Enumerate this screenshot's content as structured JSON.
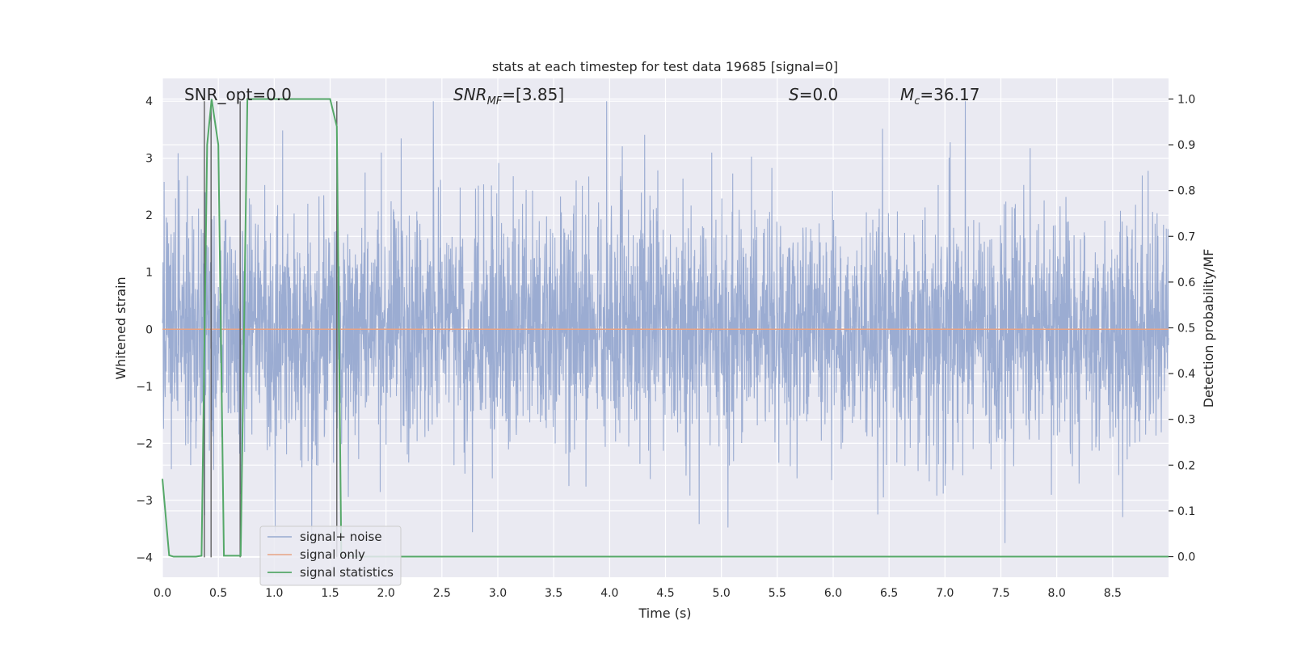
{
  "chart_data": {
    "type": "line",
    "title": "stats at each timestep for test data 19685 [signal=0]",
    "xlabel": "Time (s)",
    "ylabel": "Whitened strain",
    "ylabel_right": "Detection probability/MF",
    "xlim": [
      0.0,
      9.0
    ],
    "ylim": [
      -4.35,
      4.4
    ],
    "ylim_right": [
      -0.045,
      1.045
    ],
    "x_ticks": [
      "0.0",
      "0.5",
      "1.0",
      "1.5",
      "2.0",
      "2.5",
      "3.0",
      "3.5",
      "4.0",
      "4.5",
      "5.0",
      "5.5",
      "6.0",
      "6.5",
      "7.0",
      "7.5",
      "8.0",
      "8.5"
    ],
    "y_ticks": [
      "4",
      "3",
      "2",
      "1",
      "0",
      "−1",
      "−2",
      "−3",
      "−4"
    ],
    "y_ticks_right": [
      "1.0",
      "0.9",
      "0.8",
      "0.7",
      "0.6",
      "0.5",
      "0.4",
      "0.3",
      "0.2",
      "0.1",
      "0.0"
    ],
    "grid": true,
    "legend_position": "lower-left",
    "annotations": {
      "snr_opt": "SNR_opt=0.0",
      "snr_mf_main": "SNR",
      "snr_mf_sub": "MF",
      "snr_mf_value": "=[3.85]",
      "s_main": "S",
      "s_value": "=0.0",
      "mc_main": "M",
      "mc_sub": "c",
      "mc_value": "=36.17"
    },
    "vertical_markers_s": [
      0.375,
      0.435,
      0.695,
      1.56
    ],
    "series": [
      {
        "name": "signal+ noise",
        "color": "#97a9d0",
        "description_values": "whitened noise, envelope roughly ±2.5 with peaks up to 4.0 and down to −3.75"
      },
      {
        "name": "signal only",
        "color": "#e8a384",
        "x": [
          0.0,
          9.0
        ],
        "y": [
          0.0,
          0.0
        ]
      },
      {
        "name": "signal statistics",
        "color": "#55a868",
        "axis": "right",
        "x": [
          0.0,
          0.06,
          0.1,
          0.2,
          0.3,
          0.35,
          0.4,
          0.44,
          0.5,
          0.55,
          0.6,
          0.66,
          0.7,
          0.76,
          0.9,
          1.0,
          1.2,
          1.4,
          1.5,
          1.56,
          1.6,
          1.62,
          1.8,
          2.0,
          3.0,
          5.0,
          7.0,
          9.0
        ],
        "y": [
          0.17,
          0.003,
          0.0,
          0.0,
          0.0,
          0.002,
          0.9,
          1.0,
          0.9,
          0.002,
          0.002,
          0.002,
          0.002,
          1.0,
          1.0,
          1.0,
          1.0,
          1.0,
          1.0,
          0.94,
          0.002,
          0.002,
          0.0,
          0.0,
          0.0,
          0.0,
          0.0,
          0.0
        ]
      }
    ]
  }
}
